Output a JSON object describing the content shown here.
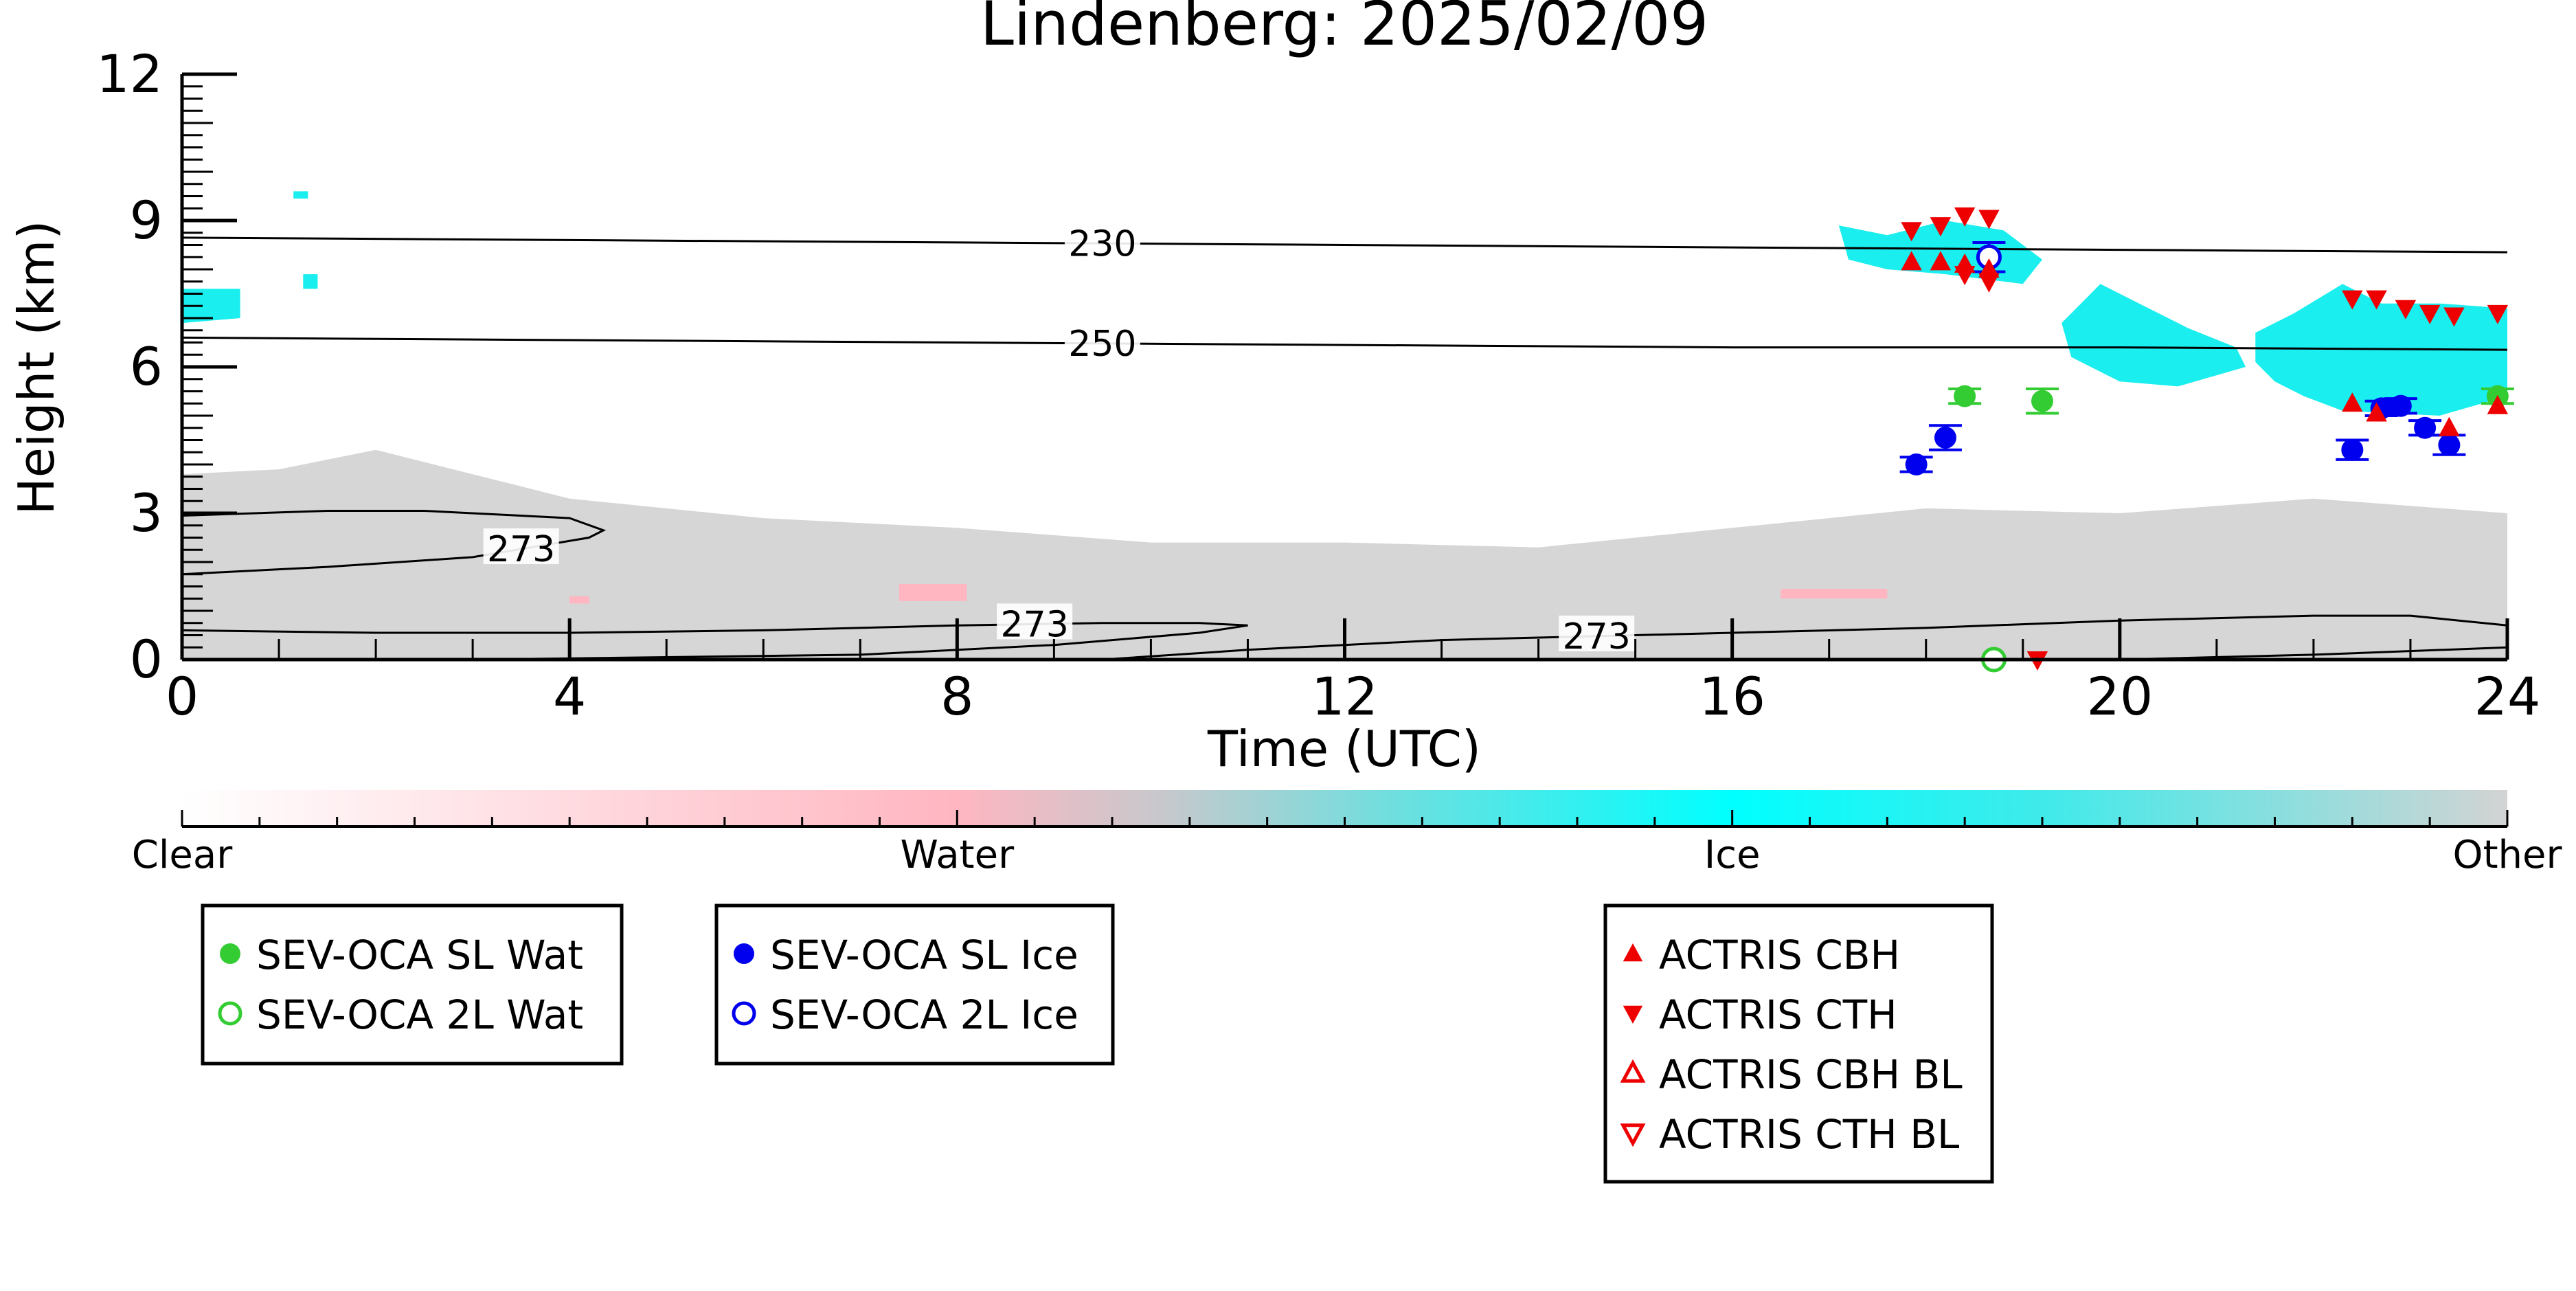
{
  "chart_data": {
    "type": "scatter",
    "title": "Lindenberg: 2025/02/09",
    "xlabel": "Time (UTC)",
    "ylabel": "Height (km)",
    "xlim": [
      0,
      24
    ],
    "ylim": [
      0,
      12
    ],
    "x_ticks": [
      0,
      4,
      8,
      12,
      16,
      20,
      24
    ],
    "y_ticks": [
      0,
      3,
      6,
      9,
      12
    ],
    "colorbar": {
      "labels": [
        "Clear",
        "Water",
        "Ice",
        "Other"
      ],
      "colors": [
        "#ffffff",
        "#ffb6c1",
        "#00ffff",
        "#d3d3d3"
      ]
    },
    "contours": [
      {
        "label": "230",
        "label_x": 9.5,
        "points": [
          [
            0,
            8.65
          ],
          [
            4,
            8.6
          ],
          [
            8,
            8.55
          ],
          [
            12,
            8.5
          ],
          [
            16,
            8.45
          ],
          [
            20,
            8.4
          ],
          [
            24,
            8.35
          ]
        ]
      },
      {
        "label": "250",
        "label_x": 9.5,
        "points": [
          [
            0,
            6.6
          ],
          [
            4,
            6.55
          ],
          [
            8,
            6.5
          ],
          [
            12,
            6.45
          ],
          [
            16,
            6.4
          ],
          [
            20,
            6.4
          ],
          [
            24,
            6.35
          ]
        ]
      },
      {
        "label": "273",
        "label_x": 3.5,
        "points": [
          [
            0,
            1.75
          ],
          [
            1.5,
            1.9
          ],
          [
            3,
            2.1
          ],
          [
            4.2,
            2.5
          ],
          [
            4.35,
            2.65
          ],
          [
            4,
            2.9
          ],
          [
            2.5,
            3.05
          ],
          [
            1.5,
            3.05
          ],
          [
            0,
            2.95
          ]
        ]
      },
      {
        "label": "273",
        "label_x": 8.8,
        "points": [
          [
            0,
            0.6
          ],
          [
            2,
            0.55
          ],
          [
            4,
            0.55
          ],
          [
            6,
            0.6
          ],
          [
            8,
            0.7
          ],
          [
            9.5,
            0.75
          ],
          [
            10.5,
            0.75
          ],
          [
            11,
            0.7
          ],
          [
            10.5,
            0.55
          ],
          [
            9,
            0.3
          ],
          [
            7,
            0.1
          ],
          [
            5,
            0.05
          ],
          [
            3,
            0.0
          ]
        ]
      },
      {
        "label": "273",
        "label_x": 14.6,
        "points": [
          [
            9.5,
            0.0
          ],
          [
            11,
            0.2
          ],
          [
            13,
            0.4
          ],
          [
            14,
            0.45
          ],
          [
            16,
            0.55
          ],
          [
            18,
            0.65
          ],
          [
            20,
            0.8
          ],
          [
            22,
            0.9
          ],
          [
            23,
            0.9
          ],
          [
            24,
            0.7
          ]
        ]
      },
      {
        "label": "",
        "label_x": 0,
        "points": [
          [
            20,
            0.0
          ],
          [
            22,
            0.1
          ],
          [
            24,
            0.25
          ]
        ]
      }
    ],
    "series": [
      {
        "name": "SEV-OCA SL Wat",
        "marker": "circle-filled",
        "color": "#33cc33",
        "x": [
          18.4,
          19.2,
          23.9
        ],
        "y": [
          5.4,
          5.3,
          5.4
        ],
        "yerr": [
          0.15,
          0.25,
          0.15
        ]
      },
      {
        "name": "SEV-OCA 2L Wat",
        "marker": "circle-open",
        "color": "#33cc33",
        "x": [
          18.7
        ],
        "y": [
          0.0
        ],
        "yerr": [
          0
        ]
      },
      {
        "name": "SEV-OCA SL Ice",
        "marker": "circle-filled",
        "color": "#0000ee",
        "x": [
          17.9,
          18.2,
          22.4,
          22.7,
          22.9,
          23.15,
          23.4
        ],
        "y": [
          4.0,
          4.55,
          4.3,
          5.15,
          5.2,
          4.75,
          4.4
        ],
        "yerr": [
          0.15,
          0.25,
          0.2,
          0.15,
          0.15,
          0.15,
          0.2
        ]
      },
      {
        "name": "SEV-OCA 2L Ice",
        "marker": "circle-open",
        "color": "#0000ee",
        "x": [
          18.65
        ],
        "y": [
          8.25
        ],
        "yerr": [
          0.3
        ]
      },
      {
        "name": "ACTRIS CBH",
        "marker": "triangle-up-filled",
        "color": "#ee0000",
        "x": [
          17.85,
          18.15,
          18.4,
          18.65,
          22.4,
          22.65,
          23.4,
          23.9
        ],
        "y": [
          8.15,
          8.15,
          8.1,
          8.0,
          5.25,
          5.05,
          4.75,
          5.2
        ]
      },
      {
        "name": "ACTRIS CTH",
        "marker": "triangle-down-filled",
        "color": "#ee0000",
        "x": [
          17.85,
          18.15,
          18.4,
          18.65,
          18.4,
          18.65,
          22.4,
          22.65,
          22.95,
          23.2,
          23.45,
          23.9,
          19.15
        ],
        "y": [
          8.8,
          8.9,
          9.1,
          9.05,
          7.9,
          7.75,
          7.4,
          7.4,
          7.2,
          7.1,
          7.05,
          7.1,
          0.0
        ]
      },
      {
        "name": "ACTRIS CBH BL",
        "marker": "triangle-up-open",
        "color": "#ee0000",
        "x": [],
        "y": []
      },
      {
        "name": "ACTRIS CTH BL",
        "marker": "triangle-down-open",
        "color": "#ee0000",
        "x": [],
        "y": []
      }
    ],
    "legend_groups": [
      [
        "SEV-OCA SL Wat",
        "SEV-OCA 2L Wat"
      ],
      [
        "SEV-OCA SL Ice",
        "SEV-OCA 2L Ice"
      ],
      [
        "ACTRIS CBH",
        "ACTRIS CTH",
        "ACTRIS CBH BL",
        "ACTRIS CTH BL"
      ]
    ],
    "legend_placement": "bottom",
    "grid": false
  }
}
